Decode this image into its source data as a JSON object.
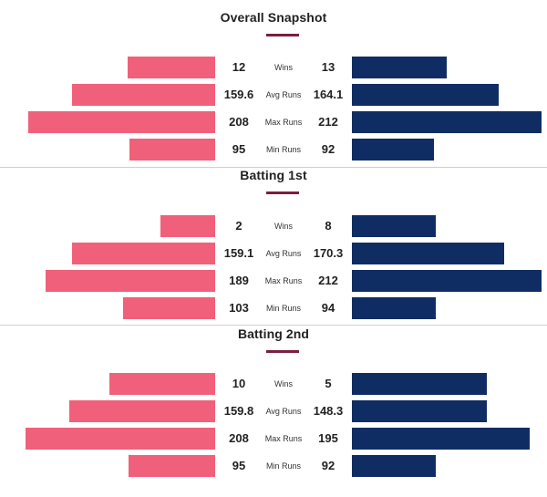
{
  "sections": [
    {
      "title": "Overall Snapshot",
      "rows": [
        {
          "label": "Wins",
          "left": "12",
          "right": "13"
        },
        {
          "label": "Avg Runs",
          "left": "159.6",
          "right": "164.1"
        },
        {
          "label": "Max Runs",
          "left": "208",
          "right": "212"
        },
        {
          "label": "Min Runs",
          "left": "95",
          "right": "92"
        }
      ]
    },
    {
      "title": "Batting 1st",
      "rows": [
        {
          "label": "Wins",
          "left": "2",
          "right": "8"
        },
        {
          "label": "Avg Runs",
          "left": "159.1",
          "right": "170.3"
        },
        {
          "label": "Max Runs",
          "left": "189",
          "right": "212"
        },
        {
          "label": "Min Runs",
          "left": "103",
          "right": "94"
        }
      ]
    },
    {
      "title": "Batting 2nd",
      "rows": [
        {
          "label": "Wins",
          "left": "10",
          "right": "5"
        },
        {
          "label": "Avg Runs",
          "left": "159.8",
          "right": "148.3"
        },
        {
          "label": "Max Runs",
          "left": "208",
          "right": "195"
        },
        {
          "label": "Min Runs",
          "left": "95",
          "right": "92"
        }
      ]
    }
  ],
  "colors": {
    "left_team": "#f0607a",
    "right_team": "#102d63",
    "accent_underline": "#7a1f3d"
  }
}
